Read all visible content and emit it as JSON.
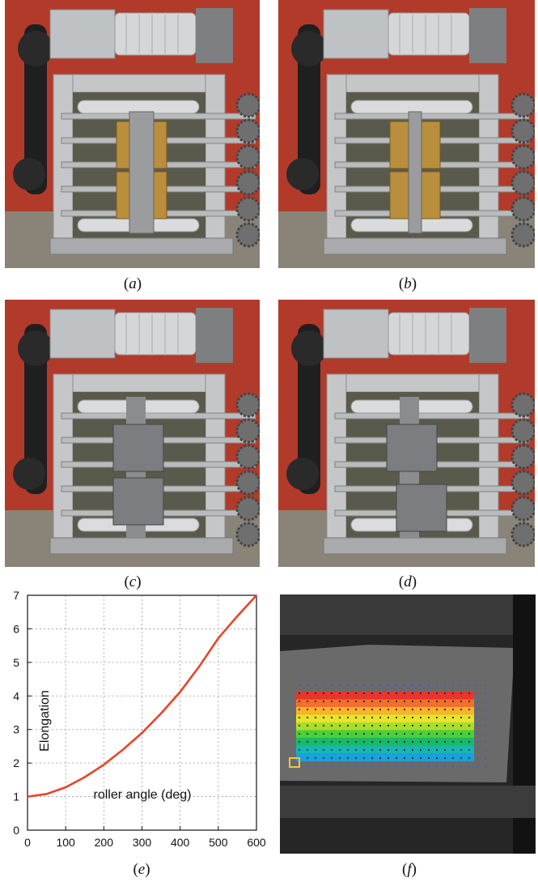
{
  "captions": {
    "a": "a",
    "b": "b",
    "c": "c",
    "d": "d",
    "e": "e",
    "f": "f"
  },
  "colors": {
    "background_wall": "#b23a2a",
    "aluminium": "#c4c6c8",
    "brass": "#b98e3c",
    "curve": "#e8452b",
    "grid": "#9a9a9a"
  },
  "photos": [
    {
      "id": "a",
      "state": "flat brass plates, central strip"
    },
    {
      "id": "b",
      "state": "flat brass plates, narrowed strip"
    },
    {
      "id": "c",
      "state": "square steel clamps together"
    },
    {
      "id": "d",
      "state": "square steel clamps separated"
    }
  ],
  "chart_data": {
    "type": "line",
    "title": "",
    "xlabel": "roller angle (deg)",
    "ylabel": "Elongation",
    "xlim": [
      0,
      600
    ],
    "ylim": [
      0,
      7
    ],
    "xticks": [
      0,
      100,
      200,
      300,
      400,
      500,
      600
    ],
    "yticks": [
      0,
      1,
      2,
      3,
      4,
      5,
      6,
      7
    ],
    "grid": true,
    "series": [
      {
        "color": "#e8452b",
        "x": [
          0,
          50,
          100,
          150,
          200,
          250,
          300,
          350,
          400,
          450,
          500,
          550,
          600
        ],
        "y": [
          1.0,
          1.08,
          1.28,
          1.58,
          1.95,
          2.4,
          2.9,
          3.48,
          4.12,
          4.88,
          5.72,
          6.38,
          7.0
        ]
      }
    ]
  },
  "dic_panel": {
    "marker_color": "#f5c242",
    "band_colors": [
      "#e8362b",
      "#f46f2b",
      "#f6b42c",
      "#e7e32a",
      "#a9dd2c",
      "#4bd03b",
      "#19b86b",
      "#17b6b1",
      "#1aa1db"
    ]
  }
}
